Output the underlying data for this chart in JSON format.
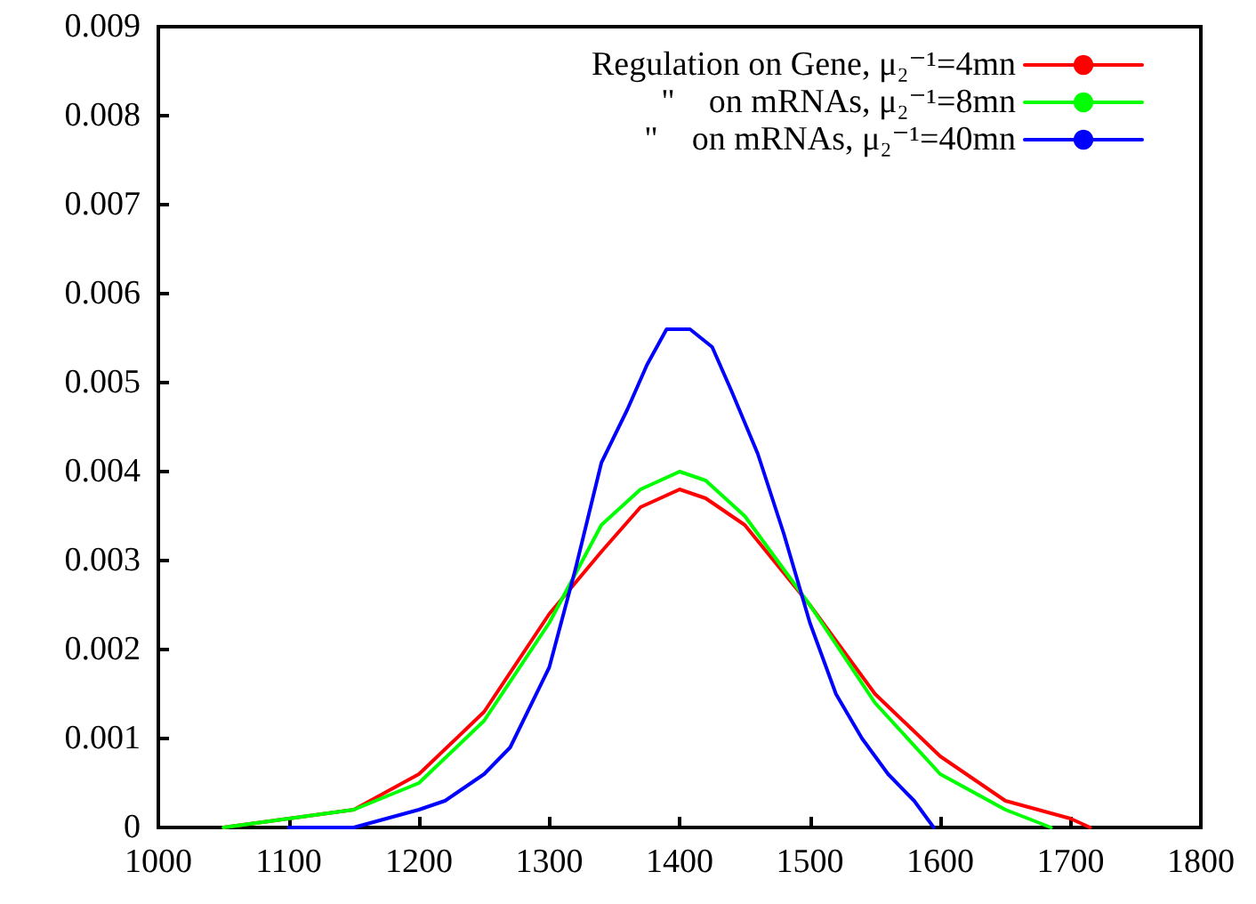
{
  "chart_data": {
    "type": "line",
    "xlim": [
      1000,
      1800
    ],
    "xticks": [
      1000,
      1100,
      1200,
      1300,
      1400,
      1500,
      1600,
      1700,
      1800
    ],
    "ylim": [
      0,
      0.009
    ],
    "yticks": [
      0,
      0.001,
      0.002,
      0.003,
      0.004,
      0.005,
      0.006,
      0.007,
      0.008,
      0.009
    ],
    "grid": false,
    "legend": "top right",
    "marker": "none",
    "line_style": "solid",
    "series": [
      {
        "name": "Regulation on Gene, μ₂⁻¹=4mn",
        "color": "#ff0000",
        "x": [
          1050,
          1100,
          1150,
          1200,
          1250,
          1300,
          1340,
          1370,
          1400,
          1420,
          1450,
          1500,
          1550,
          1600,
          1650,
          1700,
          1715
        ],
        "values": [
          0,
          0.0001,
          0.0002,
          0.0006,
          0.0013,
          0.0024,
          0.0031,
          0.0036,
          0.0038,
          0.0037,
          0.0034,
          0.0025,
          0.0015,
          0.0008,
          0.0003,
          0.0001,
          0
        ]
      },
      {
        "name": "\"    on mRNAs, μ₂⁻¹=8mn",
        "color": "#00ff00",
        "x": [
          1050,
          1100,
          1150,
          1200,
          1250,
          1300,
          1340,
          1370,
          1400,
          1420,
          1450,
          1500,
          1550,
          1600,
          1650,
          1685
        ],
        "values": [
          0,
          0.0001,
          0.0002,
          0.0005,
          0.0012,
          0.0023,
          0.0034,
          0.0038,
          0.004,
          0.0039,
          0.0035,
          0.0025,
          0.0014,
          0.0006,
          0.0002,
          0
        ]
      },
      {
        "name": "\"    on mRNAs, μ₂⁻¹=40mn",
        "color": "#0000ff",
        "x": [
          1100,
          1150,
          1200,
          1220,
          1250,
          1270,
          1300,
          1320,
          1340,
          1360,
          1375,
          1390,
          1408,
          1425,
          1440,
          1460,
          1480,
          1500,
          1520,
          1540,
          1560,
          1580,
          1595
        ],
        "values": [
          0,
          0,
          0.0002,
          0.0003,
          0.0006,
          0.0009,
          0.0018,
          0.0029,
          0.0041,
          0.0047,
          0.0052,
          0.0056,
          0.0056,
          0.0054,
          0.0049,
          0.0042,
          0.0033,
          0.0023,
          0.0015,
          0.001,
          0.0006,
          0.0003,
          0
        ]
      }
    ]
  }
}
